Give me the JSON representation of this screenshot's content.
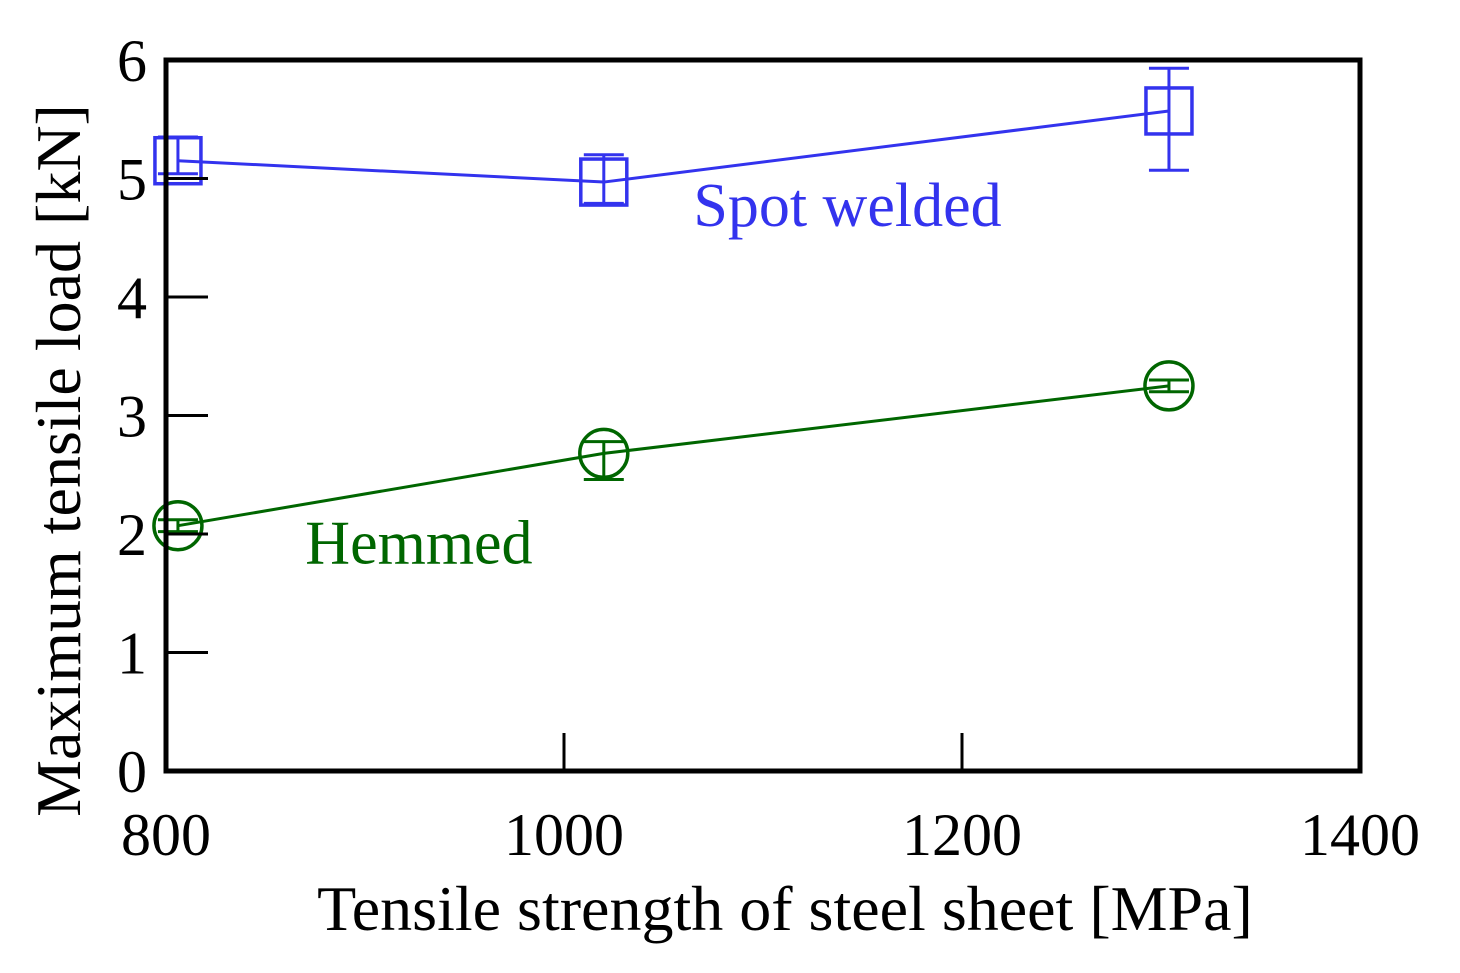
{
  "chart_data": {
    "type": "line",
    "xlabel": "Tensile strength of steel sheet [MPa]",
    "ylabel": "Maximum tensile load [kN]",
    "xlim": [
      800,
      1400
    ],
    "ylim": [
      0,
      6
    ],
    "xticks": [
      800,
      1000,
      1200,
      1400
    ],
    "yticks": [
      0,
      1,
      2,
      3,
      4,
      5,
      6
    ],
    "grid": false,
    "series": [
      {
        "name": "Spot welded",
        "marker": "square",
        "color": "#3333ee",
        "x": [
          806,
          1020,
          1304
        ],
        "y": [
          5.15,
          4.97,
          5.57
        ],
        "err_low": [
          5.04,
          4.79,
          5.07
        ],
        "err_high": [
          5.35,
          5.2,
          5.93
        ]
      },
      {
        "name": "Hemmed",
        "marker": "circle",
        "color": "#006600",
        "x": [
          806,
          1020,
          1304
        ],
        "y": [
          2.07,
          2.68,
          3.25
        ],
        "err_low": [
          2.02,
          2.46,
          3.2
        ],
        "err_high": [
          2.12,
          2.78,
          3.3
        ]
      }
    ],
    "annotations": [
      {
        "text": "Spot welded",
        "color": "#3333ee",
        "at": [
          1065,
          4.6
        ]
      },
      {
        "text": "Hemmed",
        "color": "#006600",
        "at": [
          870,
          1.75
        ]
      }
    ]
  }
}
